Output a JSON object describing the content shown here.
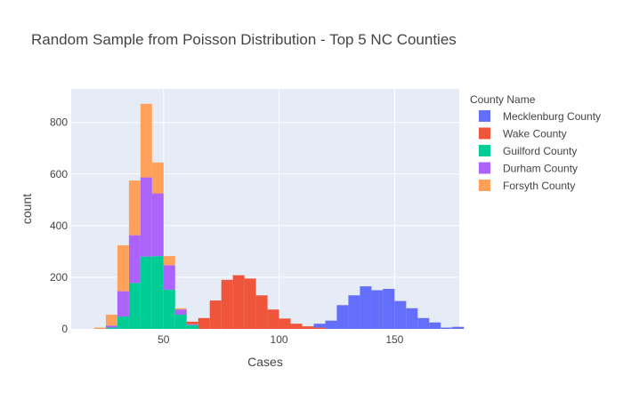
{
  "chart_data": {
    "type": "bar",
    "subtype": "stacked-histogram",
    "title": "Random Sample from Poisson Distribution - Top 5 NC Counties",
    "xlabel": "Cases",
    "ylabel": "count",
    "xlim": [
      10,
      178
    ],
    "ylim": [
      0,
      930
    ],
    "x_ticks": [
      50,
      100,
      150
    ],
    "y_ticks": [
      0,
      200,
      400,
      600,
      800
    ],
    "bin_width": 5,
    "grid": true,
    "plot_background": "#e5ecf6",
    "legend_title": "County Name",
    "legend_position": "right",
    "series": [
      {
        "name": "Mecklenburg County",
        "color": "#636efa",
        "bins": [
          {
            "x0": 115,
            "value": 15
          },
          {
            "x0": 120,
            "value": 32
          },
          {
            "x0": 125,
            "value": 92
          },
          {
            "x0": 130,
            "value": 130
          },
          {
            "x0": 135,
            "value": 165
          },
          {
            "x0": 140,
            "value": 150
          },
          {
            "x0": 145,
            "value": 155
          },
          {
            "x0": 150,
            "value": 108
          },
          {
            "x0": 155,
            "value": 80
          },
          {
            "x0": 160,
            "value": 42
          },
          {
            "x0": 165,
            "value": 25
          },
          {
            "x0": 170,
            "value": 5
          },
          {
            "x0": 175,
            "value": 8
          }
        ]
      },
      {
        "name": "Wake County",
        "color": "#ef553b",
        "bins": [
          {
            "x0": 60,
            "value": 10
          },
          {
            "x0": 65,
            "value": 42
          },
          {
            "x0": 70,
            "value": 110
          },
          {
            "x0": 75,
            "value": 190
          },
          {
            "x0": 80,
            "value": 208
          },
          {
            "x0": 85,
            "value": 195
          },
          {
            "x0": 90,
            "value": 130
          },
          {
            "x0": 95,
            "value": 75
          },
          {
            "x0": 100,
            "value": 40
          },
          {
            "x0": 105,
            "value": 20
          },
          {
            "x0": 110,
            "value": 10
          },
          {
            "x0": 115,
            "value": 5
          }
        ]
      },
      {
        "name": "Guilford County",
        "color": "#00cc96",
        "bins": [
          {
            "x0": 25,
            "value": 5
          },
          {
            "x0": 30,
            "value": 48
          },
          {
            "x0": 35,
            "value": 178
          },
          {
            "x0": 40,
            "value": 280
          },
          {
            "x0": 45,
            "value": 282
          },
          {
            "x0": 50,
            "value": 152
          },
          {
            "x0": 55,
            "value": 55
          },
          {
            "x0": 60,
            "value": 15
          }
        ]
      },
      {
        "name": "Durham County",
        "color": "#ab63fa",
        "bins": [
          {
            "x0": 25,
            "value": 8
          },
          {
            "x0": 30,
            "value": 98
          },
          {
            "x0": 35,
            "value": 185
          },
          {
            "x0": 40,
            "value": 307
          },
          {
            "x0": 45,
            "value": 243
          },
          {
            "x0": 50,
            "value": 95
          },
          {
            "x0": 55,
            "value": 20
          },
          {
            "x0": 60,
            "value": 3
          }
        ]
      },
      {
        "name": "Forsyth County",
        "color": "#ffa15a",
        "bins": [
          {
            "x0": 20,
            "value": 5
          },
          {
            "x0": 25,
            "value": 42
          },
          {
            "x0": 30,
            "value": 178
          },
          {
            "x0": 35,
            "value": 212
          },
          {
            "x0": 40,
            "value": 285
          },
          {
            "x0": 45,
            "value": 120
          },
          {
            "x0": 50,
            "value": 35
          },
          {
            "x0": 55,
            "value": 5
          }
        ]
      }
    ],
    "stack_order": [
      "Guilford County",
      "Durham County",
      "Forsyth County",
      "Wake County",
      "Mecklenburg County"
    ]
  }
}
